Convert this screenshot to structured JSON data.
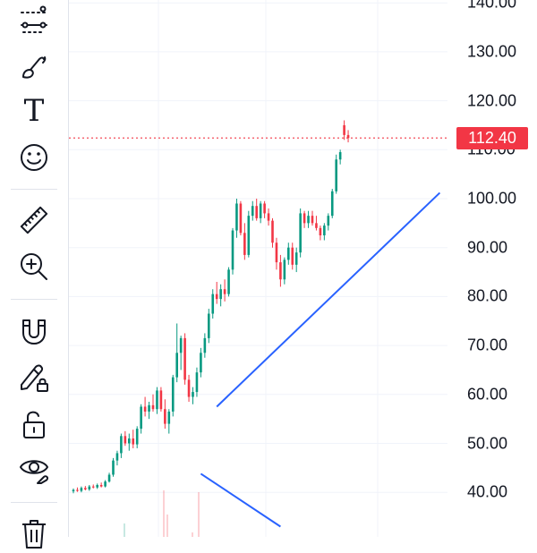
{
  "toolbar": {
    "tools": [
      {
        "name": "trend-line-tool-icon"
      },
      {
        "name": "brush-tool-icon"
      },
      {
        "name": "text-tool",
        "glyph": "T"
      },
      {
        "name": "emoji-tool-icon"
      },
      {
        "name": "ruler-tool-icon"
      },
      {
        "name": "zoom-in-tool-icon"
      },
      {
        "name": "magnet-tool-icon"
      },
      {
        "name": "lock-drawing-tool-icon"
      },
      {
        "name": "unlock-tool-icon"
      },
      {
        "name": "hide-drawings-icon"
      },
      {
        "name": "trash-icon"
      }
    ]
  },
  "price_axis": {
    "last_price": "112.40",
    "ticks": [
      "140.00",
      "130.00",
      "120.00",
      "110.00",
      "100.00",
      "90.00",
      "80.00",
      "70.00",
      "60.00",
      "50.00",
      "40.00"
    ]
  },
  "chart_data": {
    "type": "candlestick",
    "ylim": [
      33,
      143
    ],
    "last_price": 112.4,
    "colors": {
      "up": "#089981",
      "down": "#f23645",
      "trendline": "#2962ff",
      "price_line": "#f23645",
      "grid": "#f0f3fa"
    },
    "candles": [
      {
        "o": 40.2,
        "h": 40.8,
        "l": 39.8,
        "c": 40.5
      },
      {
        "o": 40.5,
        "h": 41.0,
        "l": 40.1,
        "c": 40.3
      },
      {
        "o": 40.3,
        "h": 41.2,
        "l": 40.0,
        "c": 40.9
      },
      {
        "o": 40.9,
        "h": 41.3,
        "l": 40.4,
        "c": 40.6
      },
      {
        "o": 40.6,
        "h": 41.5,
        "l": 40.3,
        "c": 41.2
      },
      {
        "o": 41.2,
        "h": 41.6,
        "l": 40.8,
        "c": 41.0
      },
      {
        "o": 41.0,
        "h": 41.8,
        "l": 40.7,
        "c": 41.5
      },
      {
        "o": 41.5,
        "h": 42.0,
        "l": 41.0,
        "c": 41.2
      },
      {
        "o": 41.2,
        "h": 42.5,
        "l": 41.0,
        "c": 42.2
      },
      {
        "o": 42.2,
        "h": 44.0,
        "l": 42.0,
        "c": 43.6
      },
      {
        "o": 43.6,
        "h": 47.0,
        "l": 43.2,
        "c": 46.5
      },
      {
        "o": 46.5,
        "h": 48.5,
        "l": 45.5,
        "c": 48.0
      },
      {
        "o": 48.0,
        "h": 52.0,
        "l": 47.0,
        "c": 51.5
      },
      {
        "o": 51.5,
        "h": 52.5,
        "l": 49.5,
        "c": 50.0
      },
      {
        "o": 50.0,
        "h": 52.0,
        "l": 48.5,
        "c": 51.0
      },
      {
        "o": 51.0,
        "h": 52.8,
        "l": 49.0,
        "c": 49.8
      },
      {
        "o": 49.8,
        "h": 53.5,
        "l": 49.0,
        "c": 53.0
      },
      {
        "o": 53.0,
        "h": 58.0,
        "l": 52.0,
        "c": 57.5
      },
      {
        "o": 57.5,
        "h": 59.5,
        "l": 55.5,
        "c": 56.5
      },
      {
        "o": 56.5,
        "h": 58.5,
        "l": 55.0,
        "c": 57.8
      },
      {
        "o": 57.8,
        "h": 60.0,
        "l": 56.5,
        "c": 57.0
      },
      {
        "o": 57.0,
        "h": 61.5,
        "l": 56.0,
        "c": 60.8
      },
      {
        "o": 60.8,
        "h": 61.5,
        "l": 56.5,
        "c": 57.0
      },
      {
        "o": 57.0,
        "h": 59.0,
        "l": 53.0,
        "c": 54.0
      },
      {
        "o": 54.0,
        "h": 57.0,
        "l": 52.0,
        "c": 56.5
      },
      {
        "o": 56.5,
        "h": 64.0,
        "l": 55.5,
        "c": 63.5
      },
      {
        "o": 63.5,
        "h": 74.5,
        "l": 62.5,
        "c": 68.5
      },
      {
        "o": 68.5,
        "h": 72.0,
        "l": 65.0,
        "c": 71.5
      },
      {
        "o": 71.5,
        "h": 72.5,
        "l": 62.0,
        "c": 63.0
      },
      {
        "o": 63.0,
        "h": 64.0,
        "l": 58.5,
        "c": 59.5
      },
      {
        "o": 59.5,
        "h": 61.5,
        "l": 58.0,
        "c": 60.5
      },
      {
        "o": 60.5,
        "h": 65.5,
        "l": 59.5,
        "c": 64.5
      },
      {
        "o": 64.5,
        "h": 69.5,
        "l": 63.5,
        "c": 68.5
      },
      {
        "o": 68.5,
        "h": 72.5,
        "l": 67.5,
        "c": 71.5
      },
      {
        "o": 71.5,
        "h": 77.5,
        "l": 70.5,
        "c": 76.5
      },
      {
        "o": 76.5,
        "h": 81.5,
        "l": 75.5,
        "c": 80.5
      },
      {
        "o": 80.5,
        "h": 83.0,
        "l": 78.5,
        "c": 79.5
      },
      {
        "o": 79.5,
        "h": 82.5,
        "l": 78.0,
        "c": 81.5
      },
      {
        "o": 81.5,
        "h": 83.5,
        "l": 79.0,
        "c": 80.5
      },
      {
        "o": 80.5,
        "h": 86.0,
        "l": 80.0,
        "c": 85.5
      },
      {
        "o": 85.5,
        "h": 94.0,
        "l": 84.5,
        "c": 93.5
      },
      {
        "o": 93.5,
        "h": 100.0,
        "l": 92.0,
        "c": 99.0
      },
      {
        "o": 99.0,
        "h": 99.5,
        "l": 92.5,
        "c": 93.0
      },
      {
        "o": 93.0,
        "h": 95.0,
        "l": 87.5,
        "c": 88.5
      },
      {
        "o": 88.5,
        "h": 97.5,
        "l": 88.0,
        "c": 96.5
      },
      {
        "o": 96.5,
        "h": 99.5,
        "l": 95.5,
        "c": 98.5
      },
      {
        "o": 98.5,
        "h": 100.0,
        "l": 95.5,
        "c": 96.0
      },
      {
        "o": 96.0,
        "h": 99.5,
        "l": 95.0,
        "c": 99.0
      },
      {
        "o": 99.0,
        "h": 99.5,
        "l": 96.0,
        "c": 97.0
      },
      {
        "o": 97.0,
        "h": 98.0,
        "l": 94.5,
        "c": 95.5
      },
      {
        "o": 95.5,
        "h": 96.0,
        "l": 90.0,
        "c": 91.0
      },
      {
        "o": 91.0,
        "h": 92.0,
        "l": 85.5,
        "c": 87.0
      },
      {
        "o": 87.0,
        "h": 88.5,
        "l": 82.0,
        "c": 83.5
      },
      {
        "o": 83.5,
        "h": 88.0,
        "l": 82.5,
        "c": 87.5
      },
      {
        "o": 87.5,
        "h": 91.0,
        "l": 86.5,
        "c": 90.0
      },
      {
        "o": 90.0,
        "h": 91.0,
        "l": 85.5,
        "c": 86.5
      },
      {
        "o": 86.5,
        "h": 90.0,
        "l": 85.0,
        "c": 89.0
      },
      {
        "o": 89.0,
        "h": 98.0,
        "l": 88.0,
        "c": 97.0
      },
      {
        "o": 97.0,
        "h": 97.5,
        "l": 94.0,
        "c": 95.0
      },
      {
        "o": 95.0,
        "h": 97.5,
        "l": 94.0,
        "c": 96.5
      },
      {
        "o": 96.5,
        "h": 97.5,
        "l": 94.5,
        "c": 95.0
      },
      {
        "o": 95.0,
        "h": 96.5,
        "l": 93.5,
        "c": 94.0
      },
      {
        "o": 94.0,
        "h": 94.5,
        "l": 91.5,
        "c": 92.5
      },
      {
        "o": 92.5,
        "h": 95.0,
        "l": 91.5,
        "c": 94.5
      },
      {
        "o": 94.5,
        "h": 97.0,
        "l": 93.5,
        "c": 96.5
      },
      {
        "o": 96.5,
        "h": 102.0,
        "l": 96.0,
        "c": 101.5
      },
      {
        "o": 101.5,
        "h": 109.0,
        "l": 101.0,
        "c": 108.0
      },
      {
        "o": 108.0,
        "h": 110.0,
        "l": 107.0,
        "c": 109.5
      },
      {
        "o": 115.0,
        "h": 116.0,
        "l": 112.0,
        "c": 113.0
      },
      {
        "o": 113.0,
        "h": 114.0,
        "l": 111.5,
        "c": 112.4
      }
    ],
    "trendlines": [
      {
        "name": "support-trendline",
        "points": [
          [
            36,
            57.5
          ],
          [
            92,
            101.2
          ]
        ]
      },
      {
        "name": "descending-trendline",
        "points": [
          [
            32,
            43.8
          ],
          [
            52,
            33.0
          ]
        ]
      }
    ]
  }
}
